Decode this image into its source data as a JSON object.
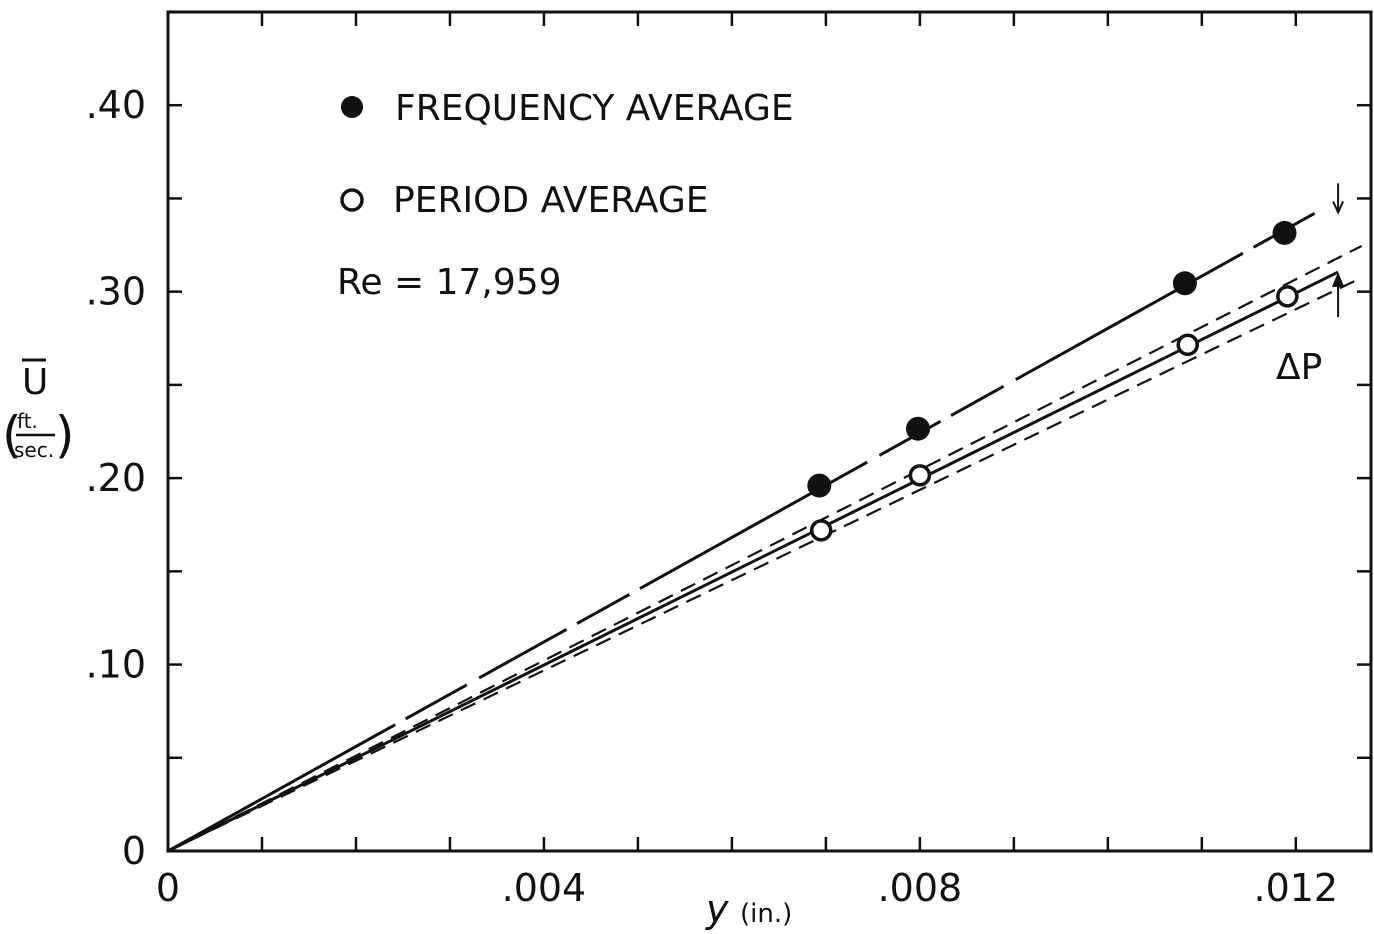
{
  "chart_data": {
    "type": "scatter",
    "title": "",
    "xlabel_main": "y",
    "xlabel_unit": "(in.)",
    "ylabel_main": "U",
    "ylabel_unit_num": "ft.",
    "ylabel_unit_den": "sec.",
    "xlim": [
      0,
      0.0128
    ],
    "ylim": [
      0,
      0.45
    ],
    "x_ticks": [
      0,
      0.004,
      0.008,
      0.012
    ],
    "x_tick_labels": [
      "0",
      ".004",
      ".008",
      ".012"
    ],
    "y_ticks": [
      0,
      0.1,
      0.2,
      0.3,
      0.4
    ],
    "y_tick_labels": [
      "0",
      ".10",
      ".20",
      ".30",
      ".40"
    ],
    "x_minor_step": 0.001,
    "y_minor_step": 0.05,
    "grid": false,
    "legend_position": "top-left",
    "series": [
      {
        "name": "FREQUENCY AVERAGE",
        "marker": "filled-circle",
        "points": [
          {
            "x": 0.00693,
            "y": 0.196
          },
          {
            "x": 0.00798,
            "y": 0.2265
          },
          {
            "x": 0.01082,
            "y": 0.3045
          },
          {
            "x": 0.01188,
            "y": 0.3315
          }
        ],
        "fit_line": {
          "from": [
            0,
            0
          ],
          "to": [
            0.0122,
            0.342
          ],
          "style": "solid-long-dash"
        }
      },
      {
        "name": "PERIOD AVERAGE",
        "marker": "open-circle",
        "points": [
          {
            "x": 0.00695,
            "y": 0.172
          },
          {
            "x": 0.008,
            "y": 0.2015
          },
          {
            "x": 0.01085,
            "y": 0.2715
          },
          {
            "x": 0.01191,
            "y": 0.2975
          }
        ],
        "fit_line": {
          "from": [
            0,
            0
          ],
          "to": [
            0.01245,
            0.3105
          ],
          "style": "solid"
        },
        "bounds": [
          {
            "from": [
              0,
              0
            ],
            "to": [
              0.0127,
              0.3245
            ],
            "style": "dashed"
          },
          {
            "from": [
              0,
              0
            ],
            "to": [
              0.0127,
              0.3075
            ],
            "style": "dashed"
          }
        ]
      }
    ],
    "annotations": {
      "reynolds": "Re = 17,959",
      "delta_p": "ΔP",
      "delta_arrow_x": 0.01245,
      "delta_arrow_top": 0.342,
      "delta_arrow_bottom": 0.3105
    }
  }
}
